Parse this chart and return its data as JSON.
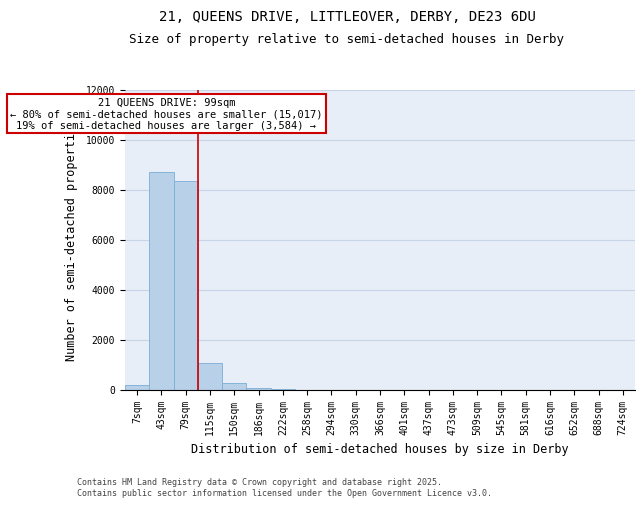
{
  "title_line1": "21, QUEENS DRIVE, LITTLEOVER, DERBY, DE23 6DU",
  "title_line2": "Size of property relative to semi-detached houses in Derby",
  "xlabel": "Distribution of semi-detached houses by size in Derby",
  "ylabel": "Number of semi-detached properties",
  "categories": [
    "7sqm",
    "43sqm",
    "79sqm",
    "115sqm",
    "150sqm",
    "186sqm",
    "222sqm",
    "258sqm",
    "294sqm",
    "330sqm",
    "366sqm",
    "401sqm",
    "437sqm",
    "473sqm",
    "509sqm",
    "545sqm",
    "581sqm",
    "616sqm",
    "652sqm",
    "688sqm",
    "724sqm"
  ],
  "values": [
    200,
    8700,
    8350,
    1050,
    270,
    80,
    10,
    0,
    0,
    0,
    0,
    0,
    0,
    0,
    0,
    0,
    0,
    0,
    0,
    0,
    0
  ],
  "bar_color": "#b8d0e8",
  "bar_edge_color": "#7aaed6",
  "vline_x_index": 2.5,
  "vline_color": "#cc0000",
  "annotation_line1": "21 QUEENS DRIVE: 99sqm",
  "annotation_line2": "← 80% of semi-detached houses are smaller (15,017)",
  "annotation_line3": "19% of semi-detached houses are larger (3,584) →",
  "annotation_box_color": "#cc0000",
  "ylim": [
    0,
    12000
  ],
  "yticks": [
    0,
    2000,
    4000,
    6000,
    8000,
    10000,
    12000
  ],
  "grid_color": "#c8d4e8",
  "background_color": "#e8eef8",
  "footer_line1": "Contains HM Land Registry data © Crown copyright and database right 2025.",
  "footer_line2": "Contains public sector information licensed under the Open Government Licence v3.0.",
  "title_fontsize": 10,
  "subtitle_fontsize": 9,
  "tick_fontsize": 7,
  "label_fontsize": 8.5,
  "annotation_fontsize": 7.5,
  "footer_fontsize": 6
}
